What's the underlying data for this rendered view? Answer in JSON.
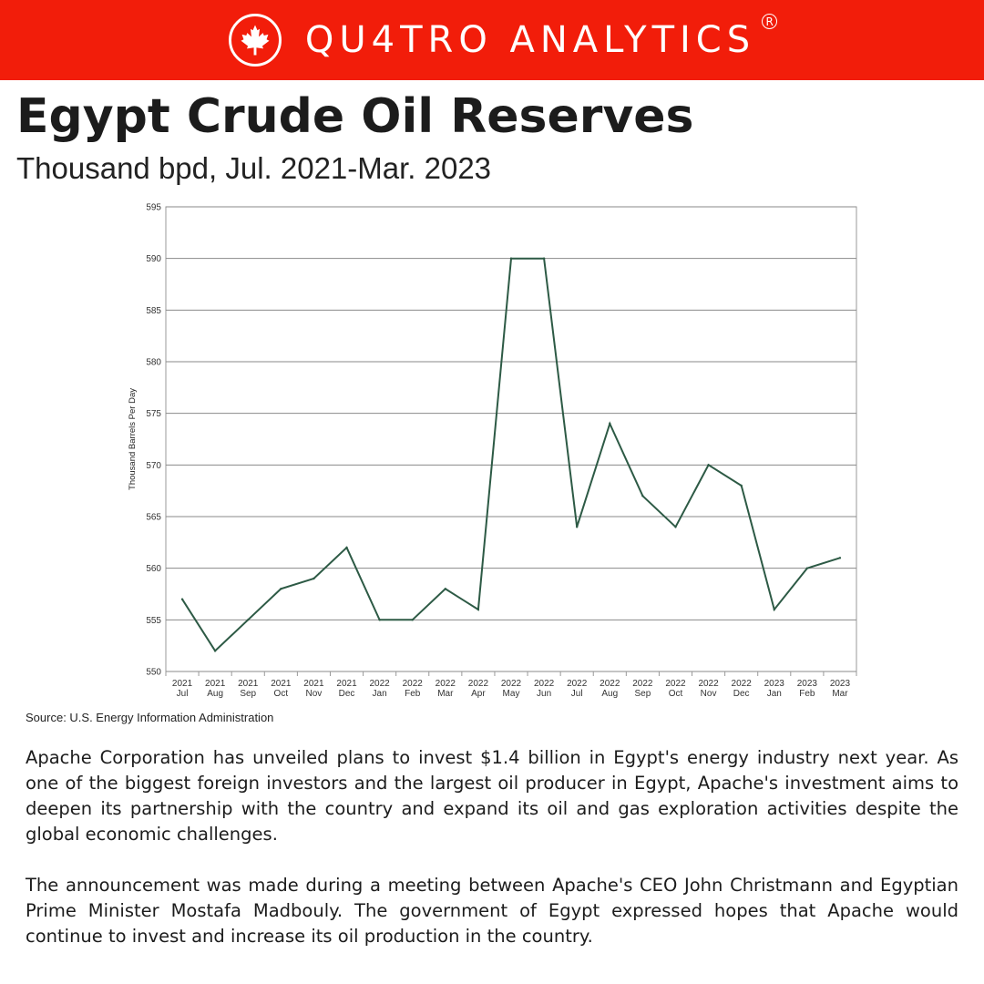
{
  "header": {
    "brand": "QU4TRO ANALYTICS",
    "registered_mark": "R",
    "logo_icon": "maple-leaf-icon",
    "background_color": "#f21d0a"
  },
  "title": "Egypt Crude Oil Reserves",
  "subtitle": "Thousand bpd, Jul. 2021-Mar. 2023",
  "chart_data": {
    "type": "line",
    "ylabel": "Thousand Barrels Per Day",
    "ylim": [
      550,
      595
    ],
    "yticks": [
      550,
      555,
      560,
      565,
      570,
      575,
      580,
      585,
      590,
      595
    ],
    "grid": true,
    "line_color": "#2d5a45",
    "categories": [
      {
        "year": "2021",
        "month": "Jul"
      },
      {
        "year": "2021",
        "month": "Aug"
      },
      {
        "year": "2021",
        "month": "Sep"
      },
      {
        "year": "2021",
        "month": "Oct"
      },
      {
        "year": "2021",
        "month": "Nov"
      },
      {
        "year": "2021",
        "month": "Dec"
      },
      {
        "year": "2022",
        "month": "Jan"
      },
      {
        "year": "2022",
        "month": "Feb"
      },
      {
        "year": "2022",
        "month": "Mar"
      },
      {
        "year": "2022",
        "month": "Apr"
      },
      {
        "year": "2022",
        "month": "May"
      },
      {
        "year": "2022",
        "month": "Jun"
      },
      {
        "year": "2022",
        "month": "Jul"
      },
      {
        "year": "2022",
        "month": "Aug"
      },
      {
        "year": "2022",
        "month": "Sep"
      },
      {
        "year": "2022",
        "month": "Oct"
      },
      {
        "year": "2022",
        "month": "Nov"
      },
      {
        "year": "2022",
        "month": "Dec"
      },
      {
        "year": "2023",
        "month": "Jan"
      },
      {
        "year": "2023",
        "month": "Feb"
      },
      {
        "year": "2023",
        "month": "Mar"
      }
    ],
    "values": [
      557,
      552,
      555,
      558,
      559,
      562,
      555,
      555,
      558,
      556,
      590,
      590,
      564,
      574,
      567,
      564,
      570,
      568,
      556,
      560,
      561
    ]
  },
  "source": "Source: U.S. Energy Information Administration",
  "paragraphs": [
    "Apache Corporation has unveiled plans to invest $1.4 billion in Egypt's energy industry next year. As one of the biggest foreign investors and the largest oil producer in Egypt, Apache's investment aims to deepen its partnership with the country and expand its oil and gas exploration activities despite the global economic challenges.",
    "The announcement was made during a meeting between Apache's CEO John Christmann and Egyptian Prime Minister Mostafa Madbouly. The government of Egypt expressed hopes that Apache would continue to invest and increase its oil production in the country."
  ]
}
